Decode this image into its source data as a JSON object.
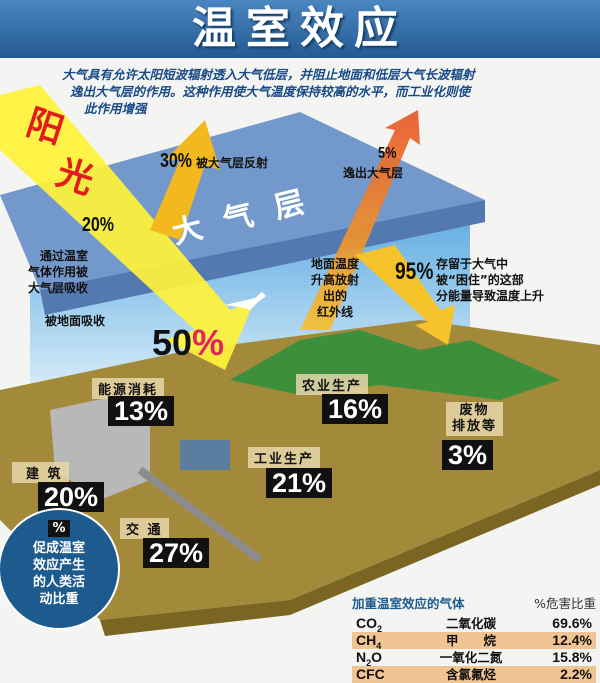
{
  "title": "温室效应",
  "description": [
    "大气具有允许太阳短波辐射透入大气低层，并阻止地面和低层大气长波辐射",
    "逸出大气层的作用。这种作用使大气温度保持较高的水平，而工业化则使",
    "此作用增强"
  ],
  "sunlight": [
    "阳",
    "光"
  ],
  "atmosphere_label": "大 气 层",
  "flows": {
    "reflected": {
      "pct": "30%",
      "label": "被大气层反射"
    },
    "absorbed_atmosphere": {
      "pct": "20%",
      "label": [
        "通过温室",
        "气体作用被",
        "大气层吸收"
      ]
    },
    "absorbed_ground": {
      "pct": "50",
      "pct_sign": "%",
      "label": "被地面吸收"
    },
    "escaped": {
      "pct": "5%",
      "label": "逸出大气层"
    },
    "infrared": {
      "label": [
        "地面温度",
        "升高放射",
        "出的",
        "红外线"
      ]
    },
    "trapped": {
      "pct": "95%",
      "label": [
        "存留于大气中",
        "被“困住”的这部",
        "分能量导致温度上升"
      ]
    }
  },
  "activities": [
    {
      "name": "能源消耗",
      "value": "13%"
    },
    {
      "name": "农业生产",
      "value": "16%"
    },
    {
      "name": "废物排放等",
      "name_lines": [
        "废物",
        "排放等"
      ],
      "value": "3%"
    },
    {
      "name": "工业生产",
      "value": "21%"
    },
    {
      "name": "建 筑",
      "value": "20%"
    },
    {
      "name": "交 通",
      "value": "27%"
    }
  ],
  "legend_circle": {
    "symbol": "%",
    "lines": [
      "促成温室",
      "效应产生",
      "的人类活",
      "动比重"
    ]
  },
  "gas_table": {
    "header": [
      "加重温室效应的气体",
      "%危害比重"
    ],
    "rows": [
      {
        "formula": "CO",
        "sub": "2",
        "formula_tail": "",
        "name": "二氧化碳",
        "pct": "69.6%"
      },
      {
        "formula": "CH",
        "sub": "4",
        "formula_tail": "",
        "name": "甲　　烷",
        "pct": "12.4%"
      },
      {
        "formula": "N",
        "sub": "2",
        "formula_tail": "O",
        "name": "一氧化二氮",
        "pct": "15.8%"
      },
      {
        "formula": "CFC",
        "sub": "",
        "formula_tail": "",
        "name": "含氯氟烃",
        "pct": "2.2%"
      }
    ]
  },
  "colors": {
    "title_band": "#2e6aa6",
    "slab": "#6f95c8",
    "ground": "#a38a3a",
    "sunlight": "#fff23a",
    "infrared": "#f08a2a",
    "circle": "#1d5b8f",
    "table_alt": "#f1c593"
  }
}
